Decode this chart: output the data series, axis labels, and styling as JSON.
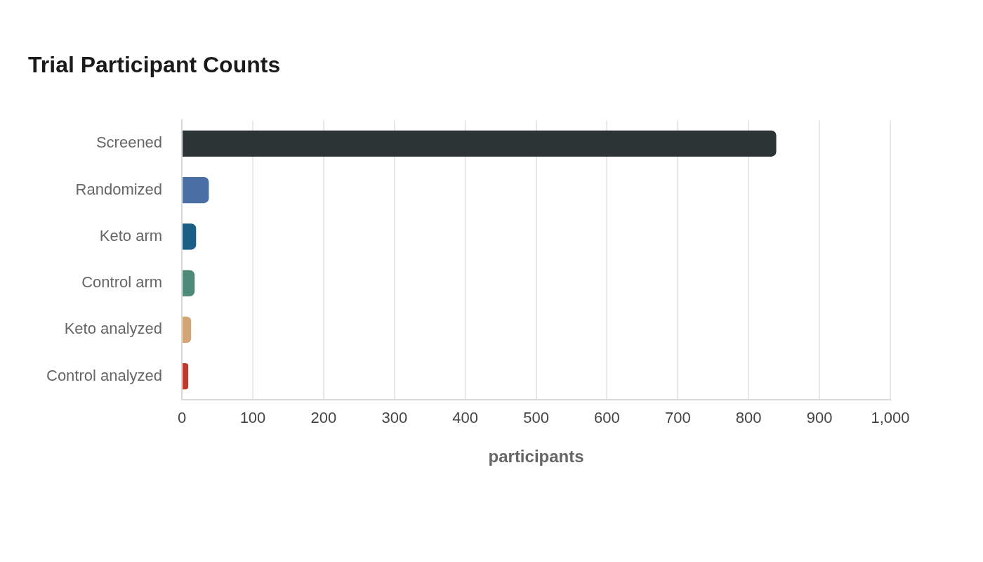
{
  "chart_data": {
    "type": "bar",
    "orientation": "horizontal",
    "title": "Trial Participant Counts",
    "xlabel": "participants",
    "categories": [
      "Screened",
      "Randomized",
      "Keto arm",
      "Control arm",
      "Keto analyzed",
      "Control analyzed"
    ],
    "values": [
      839,
      38,
      20,
      18,
      13,
      9
    ],
    "colors": [
      "#2d3436",
      "#4a6fa5",
      "#1b5e85",
      "#4e8a78",
      "#d4a574",
      "#c0392b"
    ],
    "xlim": [
      0,
      1000
    ],
    "xticks": [
      0,
      100,
      200,
      300,
      400,
      500,
      600,
      700,
      800,
      900,
      {
        "value": 1000,
        "label": "1,000"
      }
    ],
    "grid": "x",
    "legend": false
  }
}
